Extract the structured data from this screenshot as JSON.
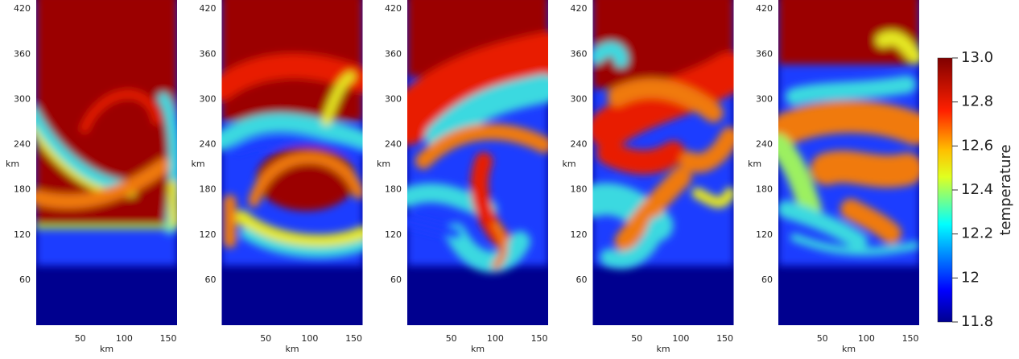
{
  "chart_data": [
    {
      "type": "field",
      "xlabel": "km",
      "ylabel": "km",
      "xlim": [
        0,
        160
      ],
      "ylim": [
        0,
        432
      ],
      "xticks": [
        50,
        100,
        150
      ],
      "yticks": [
        60,
        120,
        180,
        240,
        300,
        360,
        420
      ]
    },
    {
      "type": "field",
      "xlabel": "km",
      "ylabel": "km",
      "xlim": [
        0,
        160
      ],
      "ylim": [
        0,
        432
      ],
      "xticks": [
        50,
        100,
        150
      ],
      "yticks": [
        60,
        120,
        180,
        240,
        300,
        360,
        420
      ]
    },
    {
      "type": "field",
      "xlabel": "km",
      "ylabel": "km",
      "xlim": [
        0,
        160
      ],
      "ylim": [
        0,
        432
      ],
      "xticks": [
        50,
        100,
        150
      ],
      "yticks": [
        60,
        120,
        180,
        240,
        300,
        360,
        420
      ]
    },
    {
      "type": "field",
      "xlabel": "km",
      "ylabel": "km",
      "xlim": [
        0,
        160
      ],
      "ylim": [
        0,
        432
      ],
      "xticks": [
        50,
        100,
        150
      ],
      "yticks": [
        60,
        120,
        180,
        240,
        300,
        360,
        420
      ]
    },
    {
      "type": "field",
      "xlabel": "km",
      "ylabel": "km",
      "xlim": [
        0,
        160
      ],
      "ylim": [
        0,
        432
      ],
      "xticks": [
        50,
        100,
        150
      ],
      "yticks": [
        60,
        120,
        180,
        240,
        300,
        360,
        420
      ]
    }
  ],
  "colorbar": {
    "label": "temperature",
    "lim": [
      11.8,
      13
    ],
    "ticks": [
      {
        "value": 11.8,
        "label": "11.8"
      },
      12,
      12.2,
      12.4,
      12.6,
      12.8,
      {
        "value": 13,
        "label": "13.0"
      }
    ]
  }
}
